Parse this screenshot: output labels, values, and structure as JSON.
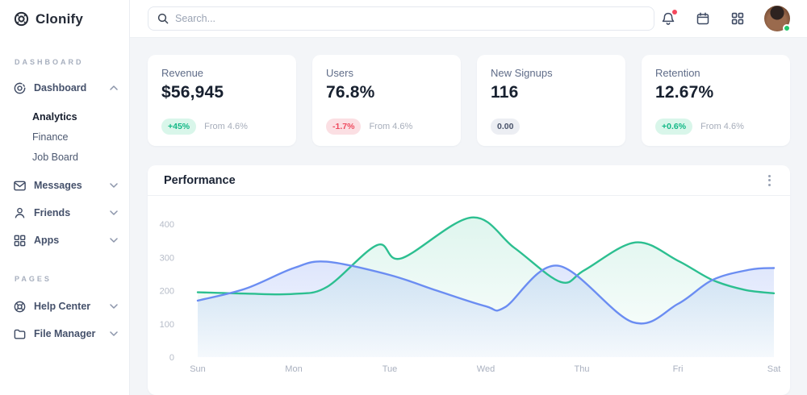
{
  "brand": {
    "name": "Clonify"
  },
  "sidebar": {
    "sections": [
      {
        "label": "DASHBOARD",
        "items": [
          {
            "label": "Dashboard",
            "icon": "dashboard-icon",
            "expanded": true,
            "children": [
              {
                "label": "Analytics",
                "active": true
              },
              {
                "label": "Finance",
                "active": false
              },
              {
                "label": "Job Board",
                "active": false
              }
            ]
          },
          {
            "label": "Messages",
            "icon": "envelope-icon"
          },
          {
            "label": "Friends",
            "icon": "user-icon"
          },
          {
            "label": "Apps",
            "icon": "grid-icon"
          }
        ]
      },
      {
        "label": "PAGES",
        "items": [
          {
            "label": "Help Center",
            "icon": "lifebuoy-icon"
          },
          {
            "label": "File Manager",
            "icon": "folder-icon"
          }
        ]
      }
    ]
  },
  "topbar": {
    "search_placeholder": "Search...",
    "icons": [
      "bell-icon",
      "calendar-icon",
      "apps-grid-icon",
      "avatar"
    ],
    "notification_dot_color": "#f4485d",
    "status_dot_color": "#22c76b"
  },
  "stats": [
    {
      "title": "Revenue",
      "value": "$56,945",
      "badge": "+45%",
      "badge_type": "positive",
      "note": "From 4.6%"
    },
    {
      "title": "Users",
      "value": "76.8%",
      "badge": "-1.7%",
      "badge_type": "negative",
      "note": "From 4.6%"
    },
    {
      "title": "New Signups",
      "value": "116",
      "badge": "0.00",
      "badge_type": "neutral",
      "note": ""
    },
    {
      "title": "Retention",
      "value": "12.67%",
      "badge": "+0.6%",
      "badge_type": "positive",
      "note": "From 4.6%"
    }
  ],
  "chart_data": {
    "type": "area",
    "title": "Performance",
    "categories": [
      "Sun",
      "Mon",
      "Tue",
      "Wed",
      "Thu",
      "Fri",
      "Sat"
    ],
    "y_ticks": [
      0,
      100,
      200,
      300,
      400
    ],
    "ylim": [
      0,
      485
    ],
    "grid": false,
    "legend": "none",
    "series": [
      {
        "name": "green",
        "color": "#2cbf90",
        "fill_opacity_top": 0.15,
        "fill_opacity_bottom": 0.01,
        "points": [
          [
            0,
            195
          ],
          [
            0.5,
            191
          ],
          [
            1,
            190
          ],
          [
            1.35,
            212
          ],
          [
            1.87,
            337
          ],
          [
            2.12,
            297
          ],
          [
            2.85,
            420
          ],
          [
            3.3,
            328
          ],
          [
            3.78,
            226
          ],
          [
            4.03,
            262
          ],
          [
            4.56,
            345
          ],
          [
            5.0,
            290
          ],
          [
            5.36,
            232
          ],
          [
            5.7,
            202
          ],
          [
            6,
            192
          ]
        ]
      },
      {
        "name": "blue",
        "color": "#6b8df2",
        "fill_opacity_top": 0.3,
        "fill_opacity_bottom": 0.04,
        "points": [
          [
            0,
            170
          ],
          [
            0.5,
            206
          ],
          [
            1,
            268
          ],
          [
            1.34,
            287
          ],
          [
            2,
            247
          ],
          [
            2.5,
            199
          ],
          [
            3,
            153
          ],
          [
            3.2,
            150
          ],
          [
            3.75,
            275
          ],
          [
            4.53,
            105
          ],
          [
            5.0,
            160
          ],
          [
            5.36,
            232
          ],
          [
            5.75,
            263
          ],
          [
            6,
            268
          ]
        ]
      }
    ]
  }
}
